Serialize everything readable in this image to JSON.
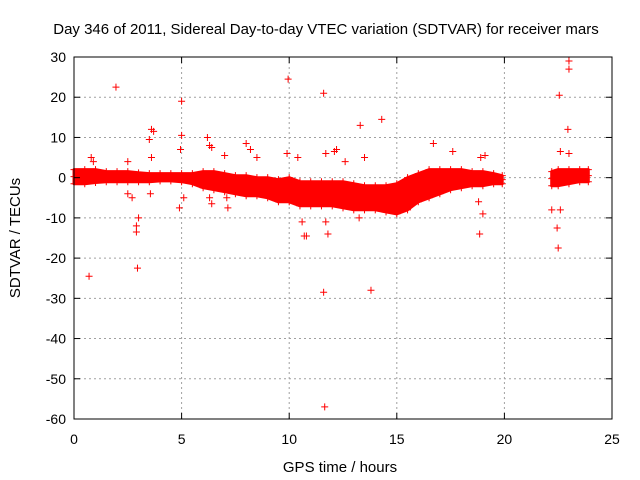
{
  "chart_data": {
    "type": "scatter",
    "title": "Day 346 of 2011, Sidereal Day-to-day VTEC variation (SDTVAR) for receiver mars",
    "xlabel": "GPS time / hours",
    "ylabel": "SDTVAR / TECUs",
    "xlim": [
      0,
      25
    ],
    "ylim": [
      -60,
      30
    ],
    "xticks": [
      0,
      5,
      10,
      15,
      20,
      25
    ],
    "yticks": [
      -60,
      -50,
      -40,
      -30,
      -20,
      -10,
      0,
      10,
      20,
      30
    ],
    "grid": true,
    "marker": "+",
    "color": "#ff0000",
    "dense_band": [
      {
        "x": 0.0,
        "lo": -1.5,
        "hi": 2.0
      },
      {
        "x": 0.5,
        "lo": -1.5,
        "hi": 2.0
      },
      {
        "x": 1.0,
        "lo": -1.2,
        "hi": 2.0
      },
      {
        "x": 1.5,
        "lo": -1.0,
        "hi": 1.5
      },
      {
        "x": 2.0,
        "lo": -1.0,
        "hi": 1.5
      },
      {
        "x": 2.5,
        "lo": -1.0,
        "hi": 1.5
      },
      {
        "x": 3.0,
        "lo": -1.0,
        "hi": 1.2
      },
      {
        "x": 3.5,
        "lo": -1.0,
        "hi": 1.0
      },
      {
        "x": 4.0,
        "lo": -0.8,
        "hi": 1.0
      },
      {
        "x": 4.5,
        "lo": -0.8,
        "hi": 1.0
      },
      {
        "x": 5.0,
        "lo": -1.0,
        "hi": 1.0
      },
      {
        "x": 5.5,
        "lo": -1.5,
        "hi": 1.0
      },
      {
        "x": 6.0,
        "lo": -2.5,
        "hi": 1.5
      },
      {
        "x": 6.5,
        "lo": -3.0,
        "hi": 1.5
      },
      {
        "x": 7.0,
        "lo": -3.5,
        "hi": 1.0
      },
      {
        "x": 7.5,
        "lo": -4.0,
        "hi": 0.5
      },
      {
        "x": 8.0,
        "lo": -4.5,
        "hi": 0.5
      },
      {
        "x": 8.5,
        "lo": -4.5,
        "hi": 0.0
      },
      {
        "x": 9.0,
        "lo": -5.0,
        "hi": 0.0
      },
      {
        "x": 9.5,
        "lo": -6.0,
        "hi": -0.5
      },
      {
        "x": 10.0,
        "lo": -6.0,
        "hi": 0.0
      },
      {
        "x": 10.5,
        "lo": -7.0,
        "hi": -1.0
      },
      {
        "x": 11.0,
        "lo": -7.0,
        "hi": -1.0
      },
      {
        "x": 11.5,
        "lo": -7.0,
        "hi": -1.0
      },
      {
        "x": 12.0,
        "lo": -7.0,
        "hi": -1.0
      },
      {
        "x": 12.5,
        "lo": -7.5,
        "hi": -1.0
      },
      {
        "x": 13.0,
        "lo": -8.0,
        "hi": -1.5
      },
      {
        "x": 13.5,
        "lo": -8.0,
        "hi": -2.0
      },
      {
        "x": 14.0,
        "lo": -8.0,
        "hi": -2.0
      },
      {
        "x": 14.5,
        "lo": -8.5,
        "hi": -2.0
      },
      {
        "x": 15.0,
        "lo": -9.0,
        "hi": -1.5
      },
      {
        "x": 15.5,
        "lo": -8.0,
        "hi": 0.0
      },
      {
        "x": 16.0,
        "lo": -6.0,
        "hi": 1.0
      },
      {
        "x": 16.5,
        "lo": -5.0,
        "hi": 2.0
      },
      {
        "x": 17.0,
        "lo": -4.0,
        "hi": 2.0
      },
      {
        "x": 17.5,
        "lo": -3.0,
        "hi": 2.0
      },
      {
        "x": 18.0,
        "lo": -2.5,
        "hi": 2.0
      },
      {
        "x": 18.5,
        "lo": -2.0,
        "hi": 1.5
      },
      {
        "x": 19.0,
        "lo": -2.0,
        "hi": 1.5
      },
      {
        "x": 19.5,
        "lo": -1.5,
        "hi": 1.0
      },
      {
        "x": 19.9,
        "lo": -1.5,
        "hi": 0.5
      }
    ],
    "dense_band_2": [
      {
        "x": 22.2,
        "lo": -2.0,
        "hi": 1.5
      },
      {
        "x": 22.5,
        "lo": -2.0,
        "hi": 2.0
      },
      {
        "x": 23.0,
        "lo": -1.5,
        "hi": 2.0
      },
      {
        "x": 23.5,
        "lo": -1.0,
        "hi": 2.0
      },
      {
        "x": 23.9,
        "lo": -1.0,
        "hi": 2.0
      }
    ],
    "outliers": [
      [
        0.7,
        -24.5
      ],
      [
        0.8,
        5.0
      ],
      [
        0.9,
        4.0
      ],
      [
        1.95,
        22.5
      ],
      [
        2.5,
        4.0
      ],
      [
        2.5,
        -4.0
      ],
      [
        2.7,
        -5.0
      ],
      [
        2.9,
        -12.0
      ],
      [
        2.9,
        -13.5
      ],
      [
        2.95,
        -22.5
      ],
      [
        3.0,
        -10.0
      ],
      [
        3.5,
        9.5
      ],
      [
        3.6,
        12.0
      ],
      [
        3.7,
        11.5
      ],
      [
        3.6,
        5.0
      ],
      [
        3.55,
        -4.0
      ],
      [
        5.0,
        19.0
      ],
      [
        5.0,
        10.5
      ],
      [
        4.95,
        7.0
      ],
      [
        4.9,
        -7.5
      ],
      [
        5.1,
        -5.0
      ],
      [
        6.2,
        10.0
      ],
      [
        6.3,
        8.0
      ],
      [
        6.4,
        7.5
      ],
      [
        6.3,
        -5.0
      ],
      [
        6.4,
        -6.5
      ],
      [
        7.0,
        5.5
      ],
      [
        7.1,
        -5.0
      ],
      [
        7.15,
        -7.5
      ],
      [
        8.0,
        8.5
      ],
      [
        8.2,
        7.0
      ],
      [
        8.5,
        5.0
      ],
      [
        9.95,
        24.5
      ],
      [
        9.9,
        6.0
      ],
      [
        10.4,
        5.0
      ],
      [
        10.7,
        -14.5
      ],
      [
        10.8,
        -14.5
      ],
      [
        10.6,
        -11.0
      ],
      [
        11.6,
        -28.5
      ],
      [
        11.65,
        -57.0
      ],
      [
        11.6,
        21.0
      ],
      [
        11.7,
        6.0
      ],
      [
        11.8,
        -14.0
      ],
      [
        11.7,
        -11.0
      ],
      [
        12.1,
        6.5
      ],
      [
        12.2,
        7.0
      ],
      [
        12.6,
        4.0
      ],
      [
        13.3,
        13.0
      ],
      [
        13.5,
        5.0
      ],
      [
        13.25,
        -10.0
      ],
      [
        13.8,
        -28.0
      ],
      [
        14.3,
        14.5
      ],
      [
        16.7,
        8.5
      ],
      [
        17.6,
        6.5
      ],
      [
        18.8,
        -6.0
      ],
      [
        18.85,
        -14.0
      ],
      [
        18.9,
        5.0
      ],
      [
        19.0,
        -9.0
      ],
      [
        19.1,
        5.5
      ],
      [
        22.2,
        -8.0
      ],
      [
        22.45,
        -12.5
      ],
      [
        22.5,
        -17.5
      ],
      [
        22.55,
        20.5
      ],
      [
        22.6,
        6.5
      ],
      [
        23.0,
        29.0
      ],
      [
        23.0,
        27.0
      ],
      [
        22.95,
        12.0
      ],
      [
        23.0,
        6.0
      ],
      [
        22.6,
        -8.0
      ]
    ]
  }
}
